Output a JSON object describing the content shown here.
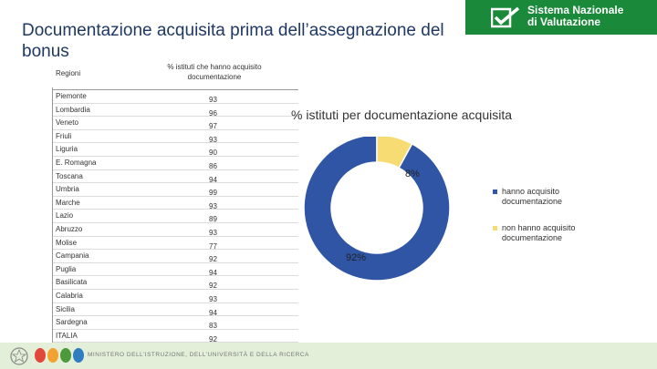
{
  "title": "Documentazione acquisita prima dell’assegnazione del bonus",
  "logo": {
    "line1": "Sistema Nazionale",
    "line2": "di Valutazione"
  },
  "table": {
    "header_region": "Regioni",
    "header_value": "% istituti che hanno acquisito documentazione",
    "rows": [
      {
        "region": "Piemonte",
        "value": "93"
      },
      {
        "region": "Lombardia",
        "value": "96"
      },
      {
        "region": "Veneto",
        "value": "97"
      },
      {
        "region": "Friuli",
        "value": "93"
      },
      {
        "region": "Liguria",
        "value": "90"
      },
      {
        "region": "E. Romagna",
        "value": "86"
      },
      {
        "region": "Toscana",
        "value": "94"
      },
      {
        "region": "Umbria",
        "value": "99"
      },
      {
        "region": "Marche",
        "value": "93"
      },
      {
        "region": "Lazio",
        "value": "89"
      },
      {
        "region": "Abruzzo",
        "value": "93"
      },
      {
        "region": "Molise",
        "value": "77"
      },
      {
        "region": "Campania",
        "value": "92"
      },
      {
        "region": "Puglia",
        "value": "94"
      },
      {
        "region": "Basilicata",
        "value": "92"
      },
      {
        "region": "Calabria",
        "value": "93"
      },
      {
        "region": "Sicilia",
        "value": "94"
      },
      {
        "region": "Sardegna",
        "value": "83"
      },
      {
        "region": "ITALIA",
        "value": "92"
      }
    ]
  },
  "chart_data": {
    "type": "pie",
    "title": "% istituti per documentazione acquisita",
    "categories": [
      "hanno acquisito documentazione",
      "non hanno acquisito documentazione"
    ],
    "values": [
      92,
      8
    ],
    "labels": [
      "92%",
      "8%"
    ],
    "colors": [
      "#2f55a4",
      "#f7dc73"
    ],
    "legend_position": "right"
  },
  "footer": {
    "ministry": "MINISTERO DELL’ISTRUZIONE, DELL’UNIVERSITÀ E DELLA RICERCA"
  }
}
